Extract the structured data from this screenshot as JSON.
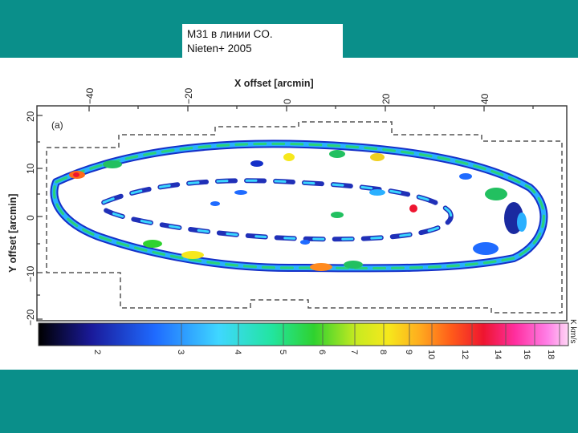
{
  "slide": {
    "caption_line1": "M31  в линии CO.",
    "caption_line2": "Nieten+ 2005",
    "band_color": "#0a8f8a"
  },
  "figure": {
    "panel_label": "(a)",
    "x_axis_title": "X offset  [arcmin]",
    "y_axis_title": "Y offset  [arcmin]",
    "x_ticks": [
      "−40",
      "−20",
      "0",
      "20",
      "40"
    ],
    "y_ticks": [
      "20",
      "10",
      "0",
      "−10",
      "−20"
    ],
    "colorbar_ticks": [
      "2",
      "3",
      "4",
      "5",
      "6",
      "7",
      "8",
      "9",
      "10",
      "12",
      "14",
      "16",
      "18"
    ],
    "colorbar_unit": "K km/s"
  }
}
